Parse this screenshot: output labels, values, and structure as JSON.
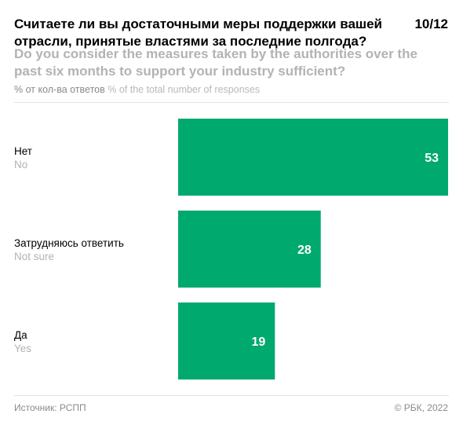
{
  "header": {
    "title_ru": "Считаете ли вы достаточными меры поддержки вашей отрасли, принятые властями за последние полгода?",
    "title_en": "Do you consider the measures taken by the authorities over the past six months to support your industry sufficient?",
    "page": "10/12",
    "subtitle_ru": "% от кол-ва ответов",
    "subtitle_en": "% of the total number of responses"
  },
  "footer": {
    "source": "Источник: РСПП",
    "copyright": "© РБК, 2022"
  },
  "colors": {
    "bar": "#00a96e"
  },
  "chart_data": {
    "type": "bar",
    "orientation": "horizontal",
    "categories": [
      "Нет",
      "Затрудняюсь ответить",
      "Да"
    ],
    "categories_en": [
      "No",
      "Not sure",
      "Yes"
    ],
    "values": [
      53,
      28,
      19
    ],
    "xlim": [
      0,
      53
    ],
    "grid": false,
    "legend": "none"
  }
}
